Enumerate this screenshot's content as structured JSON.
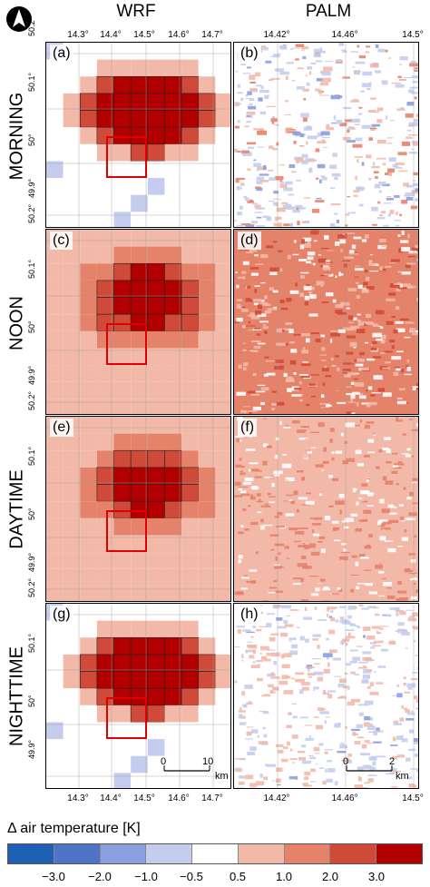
{
  "column_titles": [
    "WRF",
    "PALM"
  ],
  "row_labels": [
    "MORNING",
    "NOON",
    "DAYTIME",
    "NIGHTTIME"
  ],
  "panel_letters": [
    "(a)",
    "(b)",
    "(c)",
    "(d)",
    "(e)",
    "(f)",
    "(g)",
    "(h)"
  ],
  "wrf_x_ticks": [
    "14.3°",
    "14.4°",
    "14.5°",
    "14.6°",
    "14.7°"
  ],
  "palm_x_ticks": [
    "14.42°",
    "14.46°",
    "14.5°"
  ],
  "y_ticks": [
    "50.2°",
    "50.1°",
    "50°",
    "49.9°"
  ],
  "wrf_scale": {
    "start": "0",
    "end": "10",
    "unit": "km"
  },
  "palm_scale": {
    "start": "0",
    "end": "2",
    "unit": "km"
  },
  "legend": {
    "title": "Δ air temperature [K]",
    "ticks": [
      "−3.0",
      "−2.0",
      "−1.0",
      "−0.5",
      "0.5",
      "1.0",
      "2.0",
      "3.0"
    ],
    "colors": [
      "#1f5fb4",
      "#4f74c6",
      "#8b9ee0",
      "#c4cdee",
      "#ffffff",
      "#f2b9a8",
      "#e5826a",
      "#d04a3a",
      "#b20000"
    ]
  },
  "icons": {
    "north": "north-arrow-icon"
  }
}
